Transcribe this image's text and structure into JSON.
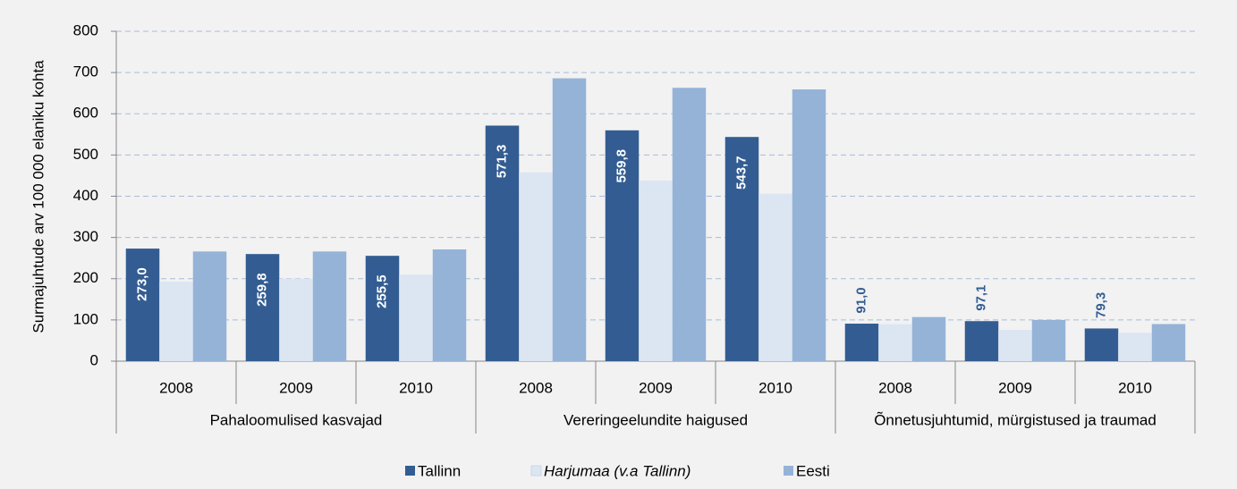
{
  "chart_data": {
    "type": "bar",
    "ylabel": "Surmajuhtude arv 100 000 elaniku kohta",
    "categories": [
      "2008",
      "2009",
      "2010",
      "2008",
      "2009",
      "2010",
      "2008",
      "2009",
      "2010"
    ],
    "groups": [
      "Pahaloomulised kasvajad",
      "Vereringeelundite haigused",
      "Õnnetusjuhtumid, mürgistused ja traumad"
    ],
    "series": [
      {
        "name": "Tallinn",
        "color": "#335d92",
        "values": [
          273.0,
          259.8,
          255.5,
          571.3,
          559.8,
          543.7,
          91.0,
          97.1,
          79.3
        ],
        "value_labels": [
          "273,0",
          "259,8",
          "255,5",
          "571,3",
          "559,8",
          "543,7",
          "91,0",
          "97,1",
          "79,3"
        ]
      },
      {
        "name": "Harjumaa (v.a Tallinn)",
        "color": "#dce6f2",
        "values": [
          193,
          200,
          210,
          458,
          438,
          406,
          90,
          76,
          69
        ]
      },
      {
        "name": "Eesti",
        "color": "#95b3d7",
        "values": [
          266,
          266,
          271,
          686,
          663,
          659,
          107,
          100,
          90
        ]
      }
    ],
    "ylim": [
      0,
      800
    ],
    "yticks": [
      0,
      100,
      200,
      300,
      400,
      500,
      600,
      700,
      800
    ],
    "grid": true,
    "legend": "bottom"
  }
}
